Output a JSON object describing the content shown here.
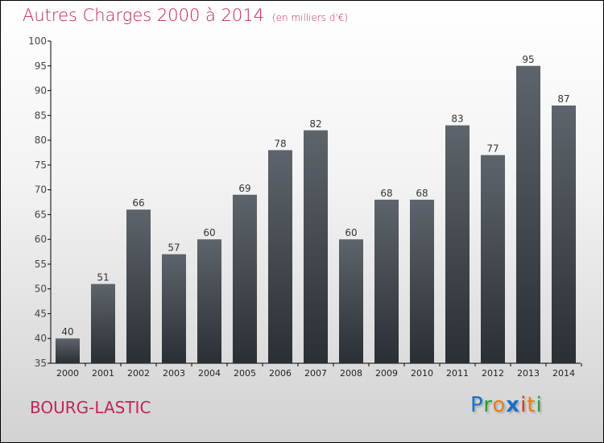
{
  "chart_data": {
    "type": "bar",
    "title": "Autres Charges 2000 à 2014",
    "subtitle": "(en milliers d'€)",
    "categories": [
      "2000",
      "2001",
      "2002",
      "2003",
      "2004",
      "2005",
      "2006",
      "2007",
      "2008",
      "2009",
      "2010",
      "2011",
      "2012",
      "2013",
      "2014"
    ],
    "values": [
      40,
      51,
      66,
      57,
      60,
      69,
      78,
      82,
      60,
      68,
      68,
      83,
      77,
      95,
      87
    ],
    "ylim": [
      35,
      100
    ],
    "yticks": [
      35,
      40,
      45,
      50,
      55,
      60,
      65,
      70,
      75,
      80,
      85,
      90,
      95,
      100
    ],
    "xlabel": "",
    "ylabel": ""
  },
  "location": "BOURG-LASTIC",
  "logo": "Proxiti",
  "colors": {
    "title": "#c0245c",
    "bar_top": "#5e646b",
    "bar_bottom": "#2a2f35"
  }
}
